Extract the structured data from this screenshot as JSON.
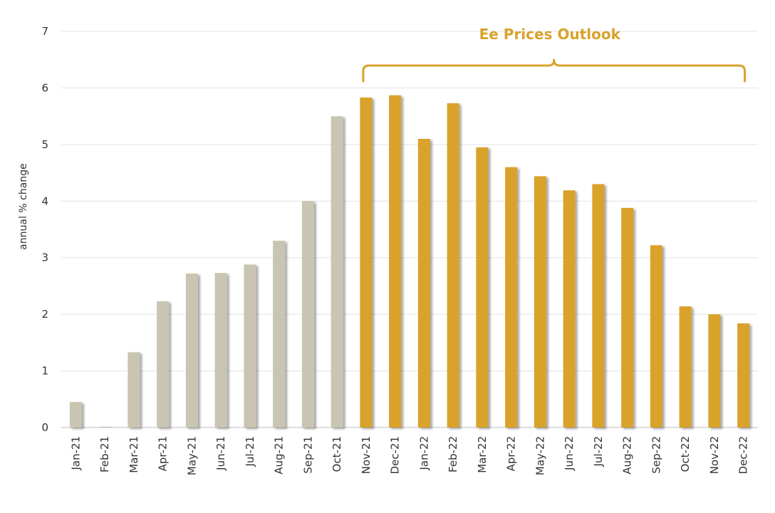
{
  "chart_data": {
    "type": "bar",
    "ylabel": "annual % change",
    "xlabel": "",
    "ylim": [
      0,
      7
    ],
    "yticks": [
      0,
      1,
      2,
      3,
      4,
      5,
      6,
      7
    ],
    "grid": true,
    "categories": [
      "Jan-21",
      "Feb-21",
      "Mar-21",
      "Apr-21",
      "May-21",
      "Jun-21",
      "Jul-21",
      "Aug-21",
      "Sep-21",
      "Oct-21",
      "Nov-21",
      "Dec-21",
      "Jan-22",
      "Feb-22",
      "Mar-22",
      "Apr-22",
      "May-22",
      "Jun-22",
      "Jul-22",
      "Aug-22",
      "Sep-22",
      "Oct-22",
      "Nov-22",
      "Dec-22"
    ],
    "values": [
      0.45,
      0.0,
      1.33,
      2.23,
      2.72,
      2.73,
      2.88,
      3.3,
      4.0,
      5.5,
      5.83,
      5.87,
      5.1,
      5.73,
      4.95,
      4.6,
      4.44,
      4.19,
      4.3,
      3.88,
      3.22,
      2.14,
      2.0,
      1.84
    ],
    "annotation": {
      "text": "Ee Prices Outlook",
      "span": [
        "Nov-21",
        "Dec-22"
      ]
    },
    "colors": {
      "actual": "#c9c5b2",
      "outlook": "#d9a22c",
      "annotation": "#d9a22c",
      "grid": "#e3e3e3",
      "axis": "#bfbfbf"
    }
  }
}
